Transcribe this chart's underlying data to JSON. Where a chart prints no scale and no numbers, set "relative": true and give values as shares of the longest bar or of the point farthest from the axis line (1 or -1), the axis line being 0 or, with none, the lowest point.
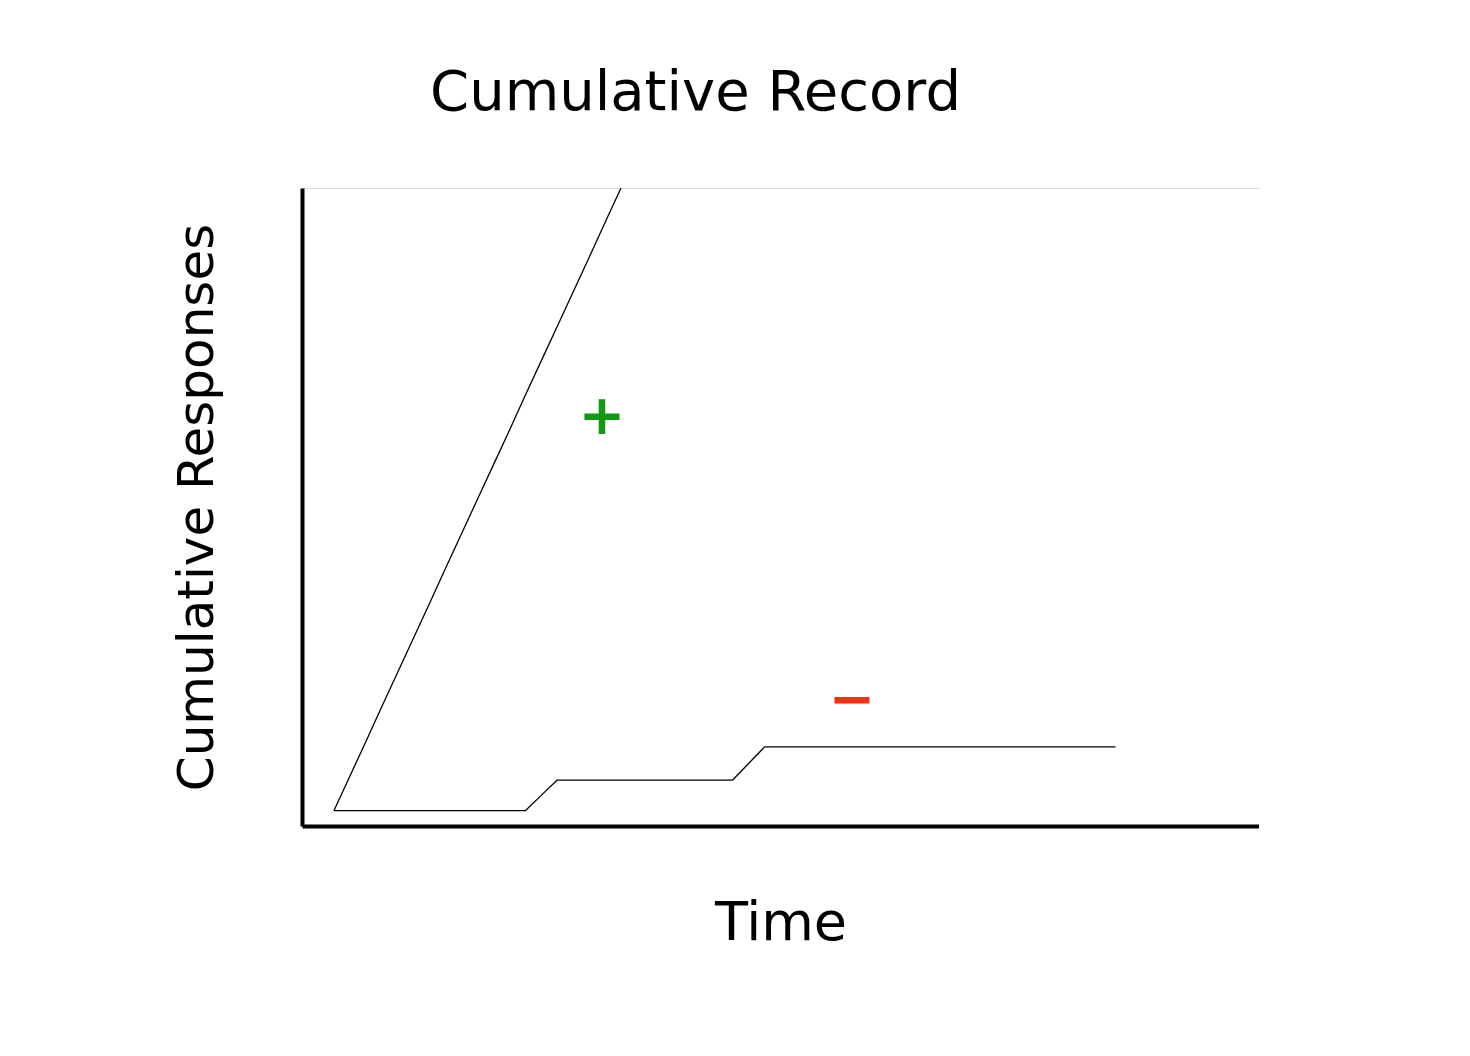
{
  "chart_data": {
    "type": "line",
    "title": "Cumulative Record",
    "xlabel": "Time",
    "ylabel": "Cumulative Responses",
    "relative": true,
    "tick_labels": false,
    "grid": false,
    "legend": false,
    "marker": "none",
    "line_style": "solid",
    "categories": [
      null,
      null,
      null,
      null,
      null,
      null,
      null,
      null,
      null,
      null,
      null,
      null,
      null,
      null,
      null,
      null,
      null,
      null,
      null,
      null,
      null,
      null,
      null,
      null,
      null,
      null,
      null,
      null,
      null,
      null,
      null,
      null,
      null,
      null,
      null,
      null,
      null,
      null,
      null,
      null,
      null,
      null,
      null,
      null,
      null,
      null,
      null,
      null,
      null,
      null,
      null,
      null,
      null,
      null,
      null,
      null,
      null,
      null,
      null,
      null,
      null
    ],
    "series": [
      {
        "color": "#000000",
        "values": [
          null,
          null,
          0.024,
          0.078,
          0.132,
          0.187,
          0.241,
          0.295,
          0.349,
          0.404,
          0.458,
          0.512,
          0.566,
          0.62,
          0.675,
          0.729,
          0.783,
          0.837,
          0.891,
          0.946,
          1,
          null,
          null,
          null,
          null,
          null,
          null,
          null,
          null,
          null,
          null,
          null,
          null,
          null,
          null,
          null,
          null,
          null,
          null,
          null,
          null,
          null,
          null,
          null,
          null,
          null,
          null,
          null,
          null,
          null,
          null,
          null,
          null,
          null,
          null,
          null,
          null,
          null,
          null,
          null,
          null
        ]
      },
      {
        "color": "#000000",
        "values": [
          null,
          null,
          0.024,
          0.024,
          0.024,
          0.024,
          0.024,
          0.024,
          0.024,
          0.024,
          0.024,
          0.024,
          0.024,
          0.024,
          0.024,
          0.048,
          0.072,
          0.072,
          0.072,
          0.072,
          0.072,
          0.072,
          0.072,
          0.072,
          0.072,
          0.072,
          0.072,
          0.072,
          0.098,
          0.124,
          0.124,
          0.124,
          0.124,
          0.124,
          0.124,
          0.124,
          0.124,
          0.124,
          0.124,
          0.124,
          0.124,
          0.124,
          0.124,
          0.124,
          0.124,
          0.124,
          0.124,
          0.124,
          0.124,
          0.124,
          0.124,
          0.124,
          null,
          null,
          null,
          null,
          null,
          null,
          null,
          null,
          null
        ]
      }
    ],
    "annotations": [
      "+",
      "−"
    ]
  }
}
